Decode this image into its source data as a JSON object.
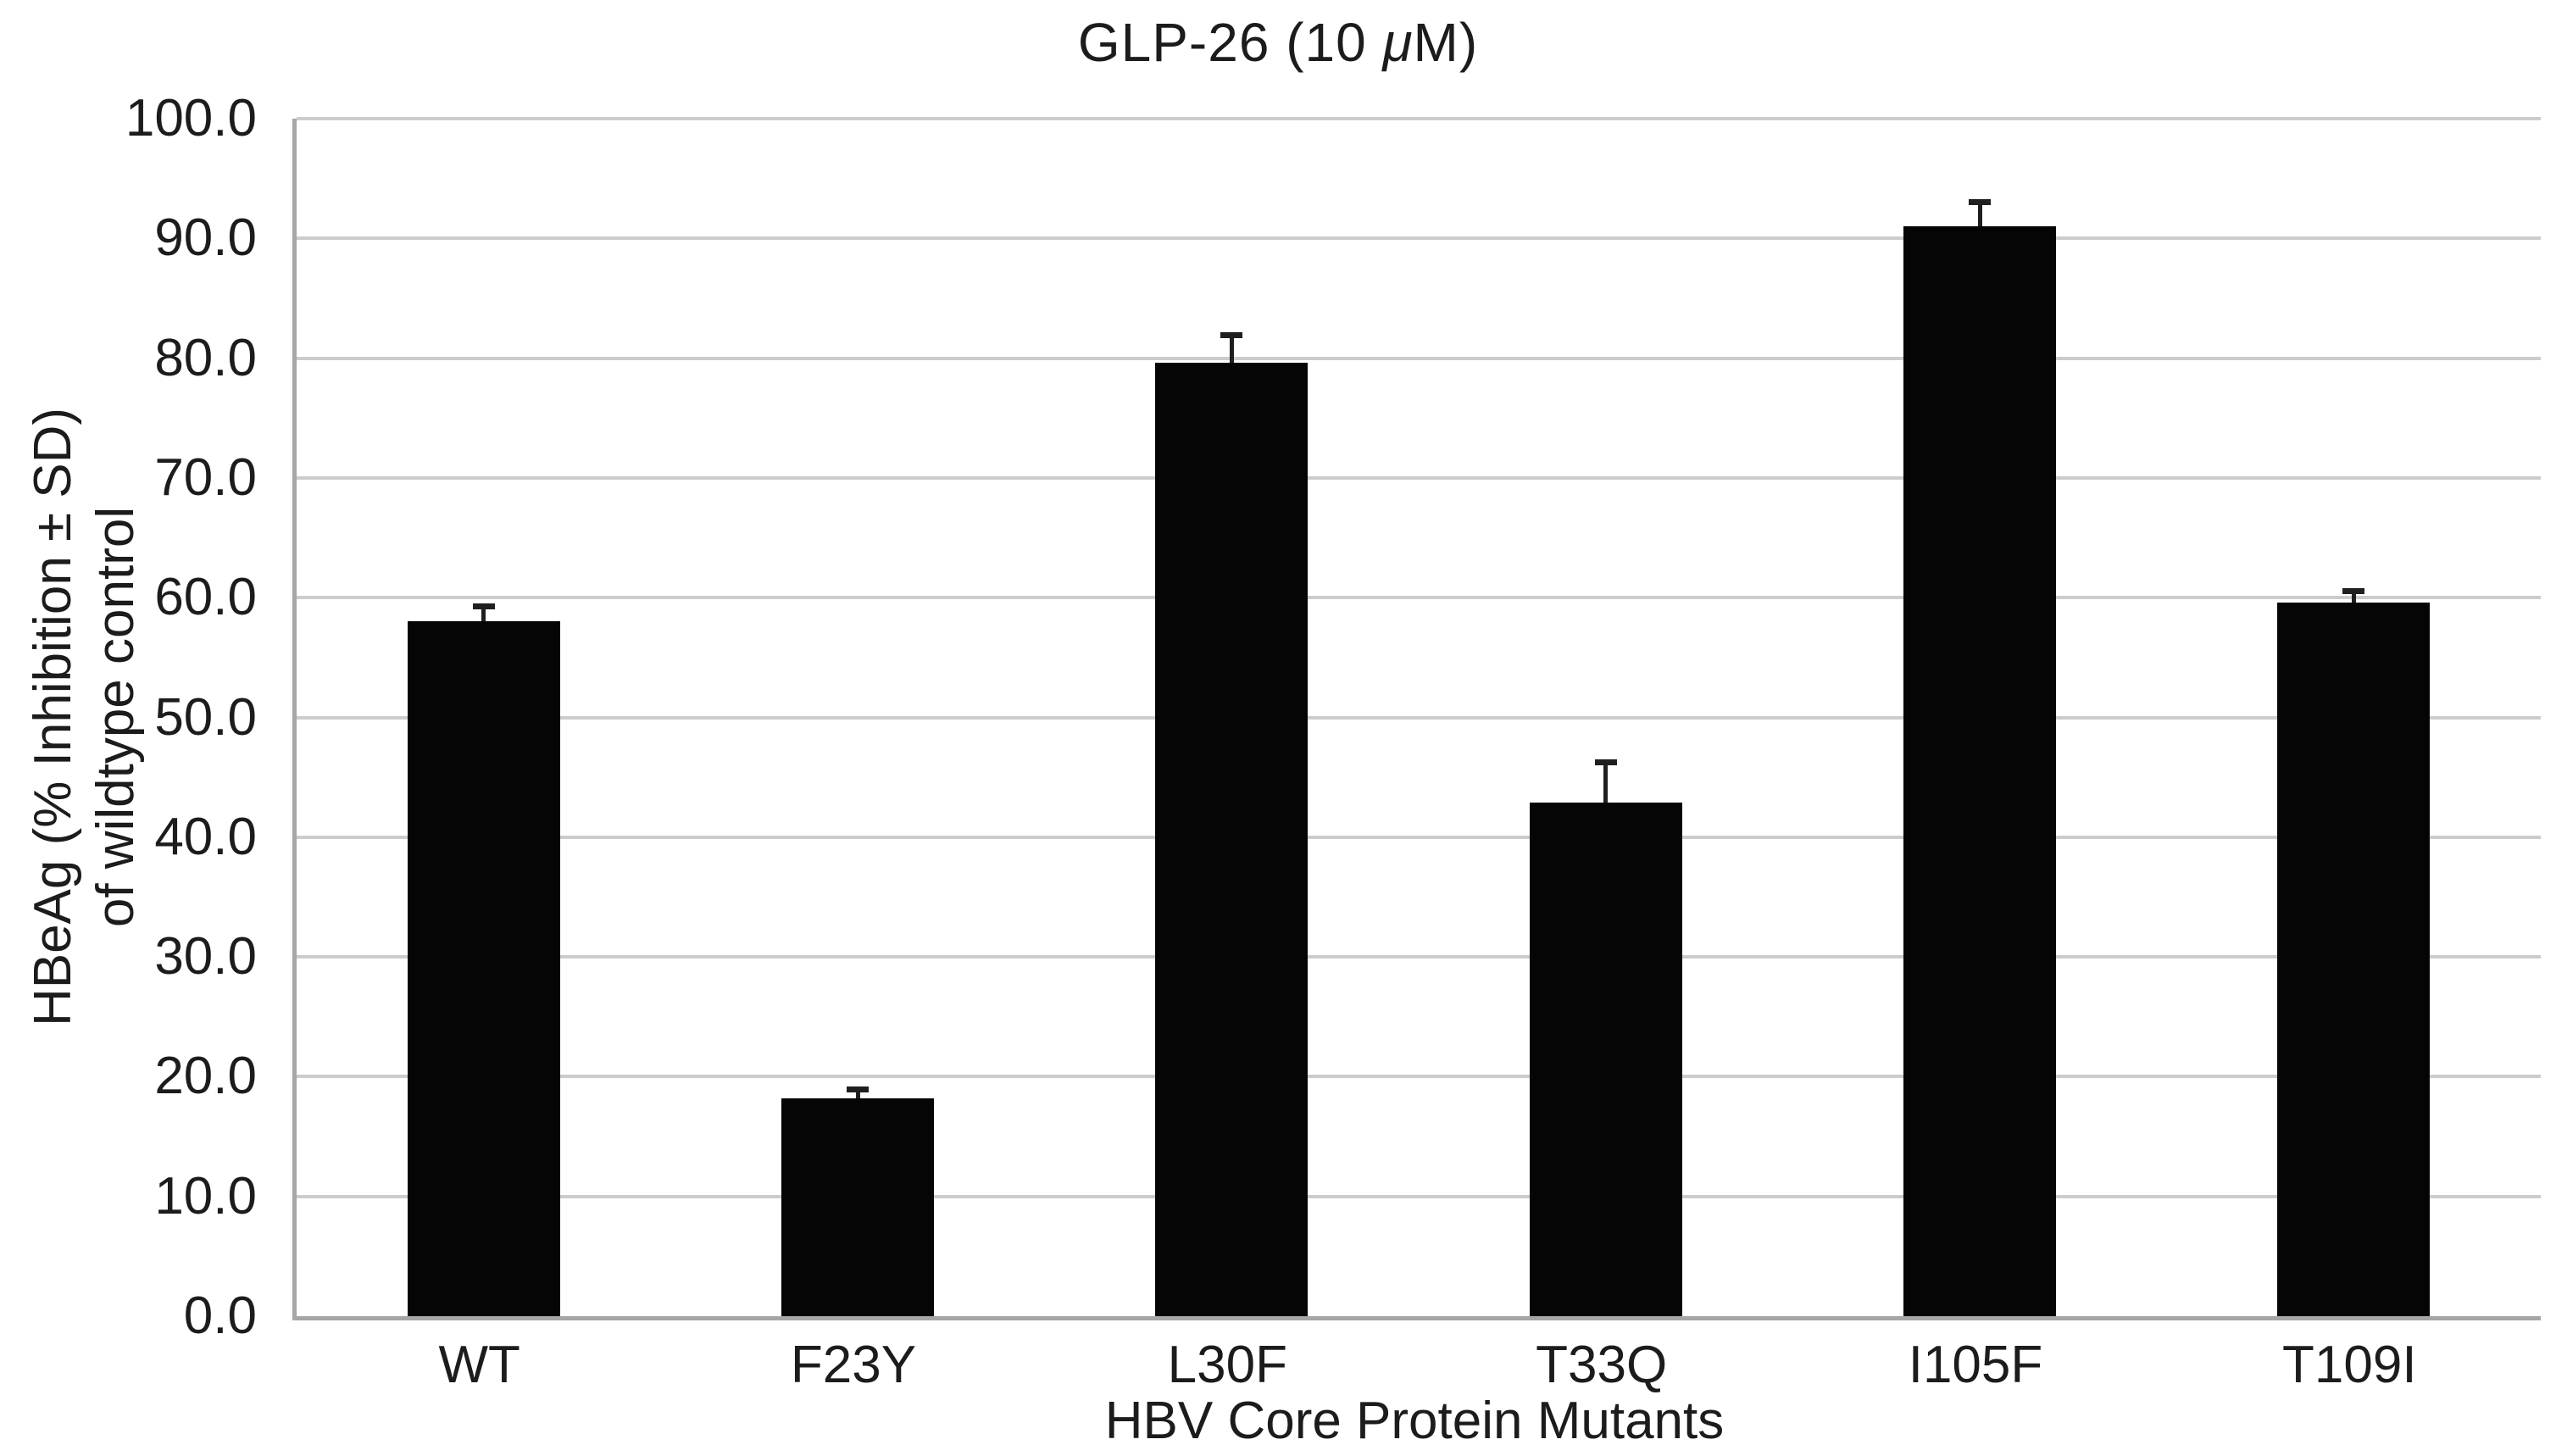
{
  "chart_data": {
    "type": "bar",
    "title": "GLP-26 (10 μM)",
    "title_parts": {
      "prefix": "GLP-26 (10 ",
      "mu": "μ",
      "suffix": "M)"
    },
    "xlabel": "HBV Core Protein Mutants",
    "ylabel_line1": "HBeAg (% Inhibition ± SD)",
    "ylabel_line2": "of wildtype control",
    "categories": [
      "WT",
      "F23Y",
      "L30F",
      "T33Q",
      "I105F",
      "T109I"
    ],
    "series": [
      {
        "name": "HBeAg % inhibition of wildtype control",
        "values": [
          58.0,
          18.2,
          79.6,
          42.9,
          91.0,
          59.6
        ],
        "errors_sd": [
          1.5,
          1.0,
          2.6,
          3.6,
          2.3,
          1.2
        ]
      }
    ],
    "ylim": [
      0,
      100
    ],
    "ytick_labels": [
      "0.0",
      "10.0",
      "20.0",
      "30.0",
      "40.0",
      "50.0",
      "60.0",
      "70.0",
      "80.0",
      "90.0",
      "100.0"
    ],
    "grid": true,
    "legend": false,
    "error_bars": "upper only, with caps",
    "colors": {
      "bar": "#050505",
      "error_bar": "#1f1f1f",
      "gridline": "#cccccc",
      "axis_line": "#a6a6a6",
      "text": "#1c1c1c",
      "background": "#ffffff"
    }
  }
}
